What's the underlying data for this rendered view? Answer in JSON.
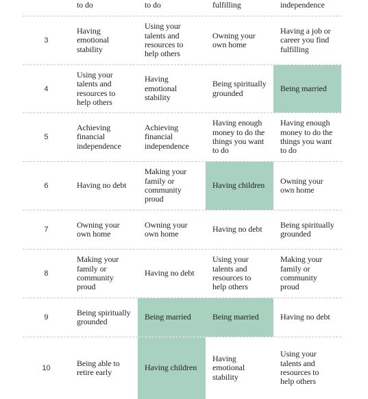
{
  "colors": {
    "highlight": "#a9d1bf",
    "divider": "#c8c8c8"
  },
  "rows": [
    {
      "rank": "",
      "cells": [
        {
          "text": "Having enough money to do the things you want to do",
          "hl": false
        },
        {
          "text": "Having enough money to do the things you want to do",
          "hl": false
        },
        {
          "text": "Having a job or career you find fulfilling",
          "hl": false
        },
        {
          "text": "Achieving financial independence",
          "hl": false
        }
      ]
    },
    {
      "rank": "3",
      "cells": [
        {
          "text": "Having emotional stability",
          "hl": false
        },
        {
          "text": "Using your talents and resources to help others",
          "hl": false
        },
        {
          "text": "Owning your own home",
          "hl": false
        },
        {
          "text": "Having a job or career you find fulfilling",
          "hl": false
        }
      ]
    },
    {
      "rank": "4",
      "cells": [
        {
          "text": "Using your talents and resources to help others",
          "hl": false
        },
        {
          "text": "Having emotional stability",
          "hl": false
        },
        {
          "text": "Being spiritually grounded",
          "hl": false
        },
        {
          "text": "Being married",
          "hl": true
        }
      ]
    },
    {
      "rank": "5",
      "cells": [
        {
          "text": "Achieving financial independence",
          "hl": false
        },
        {
          "text": "Achieving financial independence",
          "hl": false
        },
        {
          "text": "Having enough money to do the things you want to do",
          "hl": false
        },
        {
          "text": "Having enough money to do the things you want to do",
          "hl": false
        }
      ]
    },
    {
      "rank": "6",
      "cells": [
        {
          "text": "Having no debt",
          "hl": false
        },
        {
          "text": "Making your family or community proud",
          "hl": false
        },
        {
          "text": "Having children",
          "hl": true
        },
        {
          "text": "Owning your own home",
          "hl": false
        }
      ]
    },
    {
      "rank": "7",
      "cells": [
        {
          "text": "Owning your own home",
          "hl": false
        },
        {
          "text": "Owning your own home",
          "hl": false
        },
        {
          "text": "Having no debt",
          "hl": false
        },
        {
          "text": "Being spiritually grounded",
          "hl": false
        }
      ]
    },
    {
      "rank": "8",
      "cells": [
        {
          "text": "Making your family or community proud",
          "hl": false
        },
        {
          "text": "Having no debt",
          "hl": false
        },
        {
          "text": "Using your talents and resources to help others",
          "hl": false
        },
        {
          "text": "Making your family or community proud",
          "hl": false
        }
      ]
    },
    {
      "rank": "9",
      "cells": [
        {
          "text": "Being spiritually grounded",
          "hl": false
        },
        {
          "text": "Being married",
          "hl": true
        },
        {
          "text": "Being married",
          "hl": true
        },
        {
          "text": "Having no debt",
          "hl": false
        }
      ]
    },
    {
      "rank": "10",
      "cells": [
        {
          "text": "Being able to retire early",
          "hl": false
        },
        {
          "text": "Having children",
          "hl": true
        },
        {
          "text": "Having emotional stability",
          "hl": false
        },
        {
          "text": "Using your talents and resources to help others",
          "hl": false
        }
      ]
    }
  ]
}
